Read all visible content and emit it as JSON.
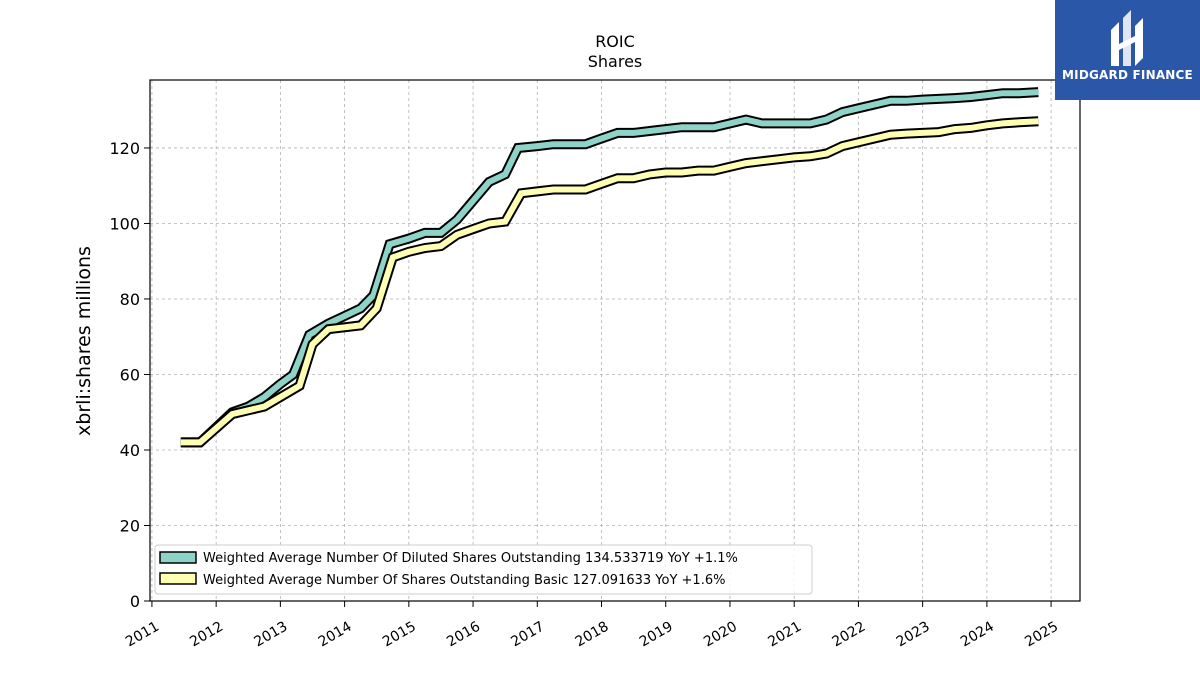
{
  "logo": {
    "text": "MIDGARD FINANCE"
  },
  "chart_data": {
    "type": "line",
    "title": "ROIC",
    "subtitle": "Shares",
    "ylabel": "xbrli:shares millions",
    "xlabel": "",
    "ylim": [
      0,
      138
    ],
    "xlim": [
      2010.97,
      2025.45
    ],
    "grid": true,
    "legend_position": "lower-left",
    "x_ticks": [
      "2011",
      "2012",
      "2013",
      "2014",
      "2015",
      "2016",
      "2017",
      "2018",
      "2019",
      "2020",
      "2021",
      "2022",
      "2023",
      "2024",
      "2025"
    ],
    "y_ticks": [
      "0",
      "20",
      "40",
      "60",
      "80",
      "100",
      "120"
    ],
    "series": [
      {
        "name": "Weighted Average Number Of Diluted Shares Outstanding",
        "legend_label": "Weighted Average Number Of Diluted Shares Outstanding  134.533719 YoY +1.1%",
        "color": "#8dd3c7",
        "x": [
          2011.45,
          2011.75,
          2012.25,
          2012.5,
          2012.75,
          2013.0,
          2013.2,
          2013.45,
          2013.75,
          2014.0,
          2014.25,
          2014.45,
          2014.7,
          2015.0,
          2015.25,
          2015.5,
          2015.75,
          2016.0,
          2016.25,
          2016.5,
          2016.7,
          2017.0,
          2017.25,
          2017.5,
          2017.75,
          2018.0,
          2018.25,
          2018.5,
          2018.75,
          2019.0,
          2019.25,
          2019.5,
          2019.75,
          2020.0,
          2020.25,
          2020.5,
          2020.75,
          2021.0,
          2021.25,
          2021.5,
          2021.75,
          2022.0,
          2022.25,
          2022.5,
          2022.75,
          2023.0,
          2023.25,
          2023.5,
          2023.75,
          2024.0,
          2024.25,
          2024.5,
          2024.8
        ],
        "values": [
          42,
          42,
          50,
          51.5,
          54,
          57.5,
          60,
          70.5,
          73.5,
          75.5,
          77.5,
          81,
          94.5,
          96,
          97.5,
          97.5,
          101,
          106,
          111,
          113,
          120,
          120.5,
          121,
          121,
          121,
          122.5,
          124,
          124,
          124.5,
          125,
          125.5,
          125.5,
          125.5,
          126.5,
          127.5,
          126.5,
          126.5,
          126.5,
          126.5,
          127.5,
          129.5,
          130.5,
          131.5,
          132.5,
          132.5,
          132.8,
          133,
          133.2,
          133.5,
          134,
          134.5,
          134.5,
          134.8
        ]
      },
      {
        "name": "Weighted Average Number Of Shares Outstanding Basic",
        "legend_label": "Weighted Average Number Of Shares Outstanding Basic  127.091633 YoY +1.6%",
        "color": "#ffffb3",
        "x": [
          2011.45,
          2011.75,
          2012.25,
          2012.5,
          2012.75,
          2013.0,
          2013.3,
          2013.5,
          2013.75,
          2014.0,
          2014.25,
          2014.5,
          2014.75,
          2015.0,
          2015.25,
          2015.5,
          2015.75,
          2016.0,
          2016.25,
          2016.5,
          2016.75,
          2017.0,
          2017.25,
          2017.5,
          2017.75,
          2018.0,
          2018.25,
          2018.5,
          2018.75,
          2019.0,
          2019.25,
          2019.5,
          2019.75,
          2020.0,
          2020.25,
          2020.5,
          2020.75,
          2021.0,
          2021.25,
          2021.5,
          2021.75,
          2022.0,
          2022.25,
          2022.5,
          2022.75,
          2023.0,
          2023.25,
          2023.5,
          2023.75,
          2024.0,
          2024.25,
          2024.5,
          2024.8
        ],
        "values": [
          42,
          42,
          49.5,
          50.5,
          51.5,
          54,
          57,
          68,
          72,
          72.5,
          73,
          77.5,
          91,
          92.5,
          93.5,
          94,
          97,
          98.5,
          100,
          100.5,
          108,
          108.5,
          109,
          109,
          109,
          110.5,
          112,
          112,
          113,
          113.5,
          113.5,
          114,
          114,
          115,
          116,
          116.5,
          117,
          117.5,
          117.8,
          118.5,
          120.5,
          121.5,
          122.5,
          123.5,
          123.8,
          124,
          124.2,
          125,
          125.3,
          126,
          126.5,
          126.8,
          127.1
        ]
      }
    ]
  }
}
